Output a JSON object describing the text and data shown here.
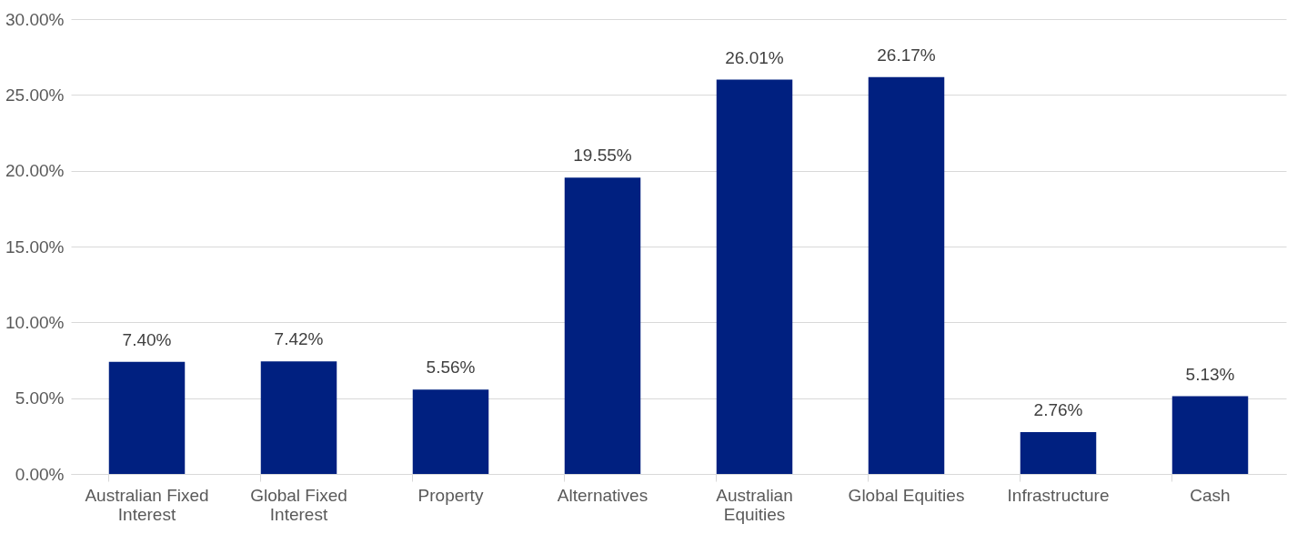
{
  "chart_data": {
    "type": "bar",
    "categories": [
      "Australian Fixed Interest",
      "Global Fixed Interest",
      "Property",
      "Alternatives",
      "Australian Equities",
      "Global Equities",
      "Infrastructure",
      "Cash"
    ],
    "values": [
      7.4,
      7.42,
      5.56,
      19.55,
      26.01,
      26.17,
      2.76,
      5.13
    ],
    "value_labels": [
      "7.40%",
      "7.42%",
      "5.56%",
      "19.55%",
      "26.01%",
      "26.17%",
      "2.76%",
      "5.13%"
    ],
    "color": "#002080",
    "ylim": [
      0,
      30
    ],
    "yticks": [
      {
        "value": 0,
        "label": "0.00%"
      },
      {
        "value": 5,
        "label": "5.00%"
      },
      {
        "value": 10,
        "label": "10.00%"
      },
      {
        "value": 15,
        "label": "15.00%"
      },
      {
        "value": 20,
        "label": "20.00%"
      },
      {
        "value": 25,
        "label": "25.00%"
      },
      {
        "value": 30,
        "label": "30.00%"
      }
    ],
    "grid": "y"
  }
}
